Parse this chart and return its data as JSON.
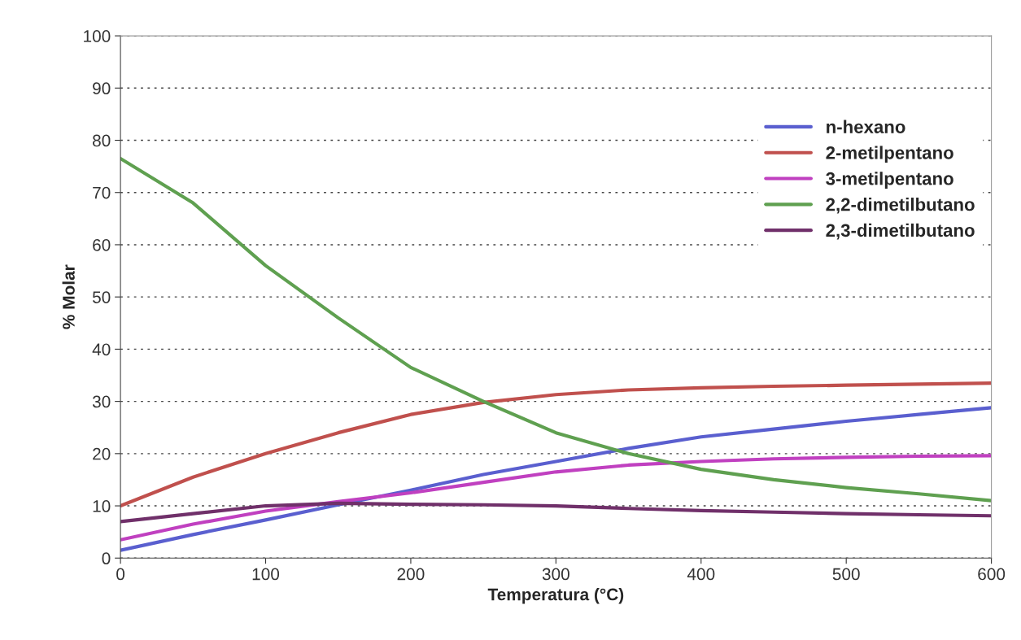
{
  "chart_data": {
    "type": "line",
    "xlabel": "Temperatura (°C)",
    "ylabel": "% Molar",
    "x": [
      0,
      50,
      100,
      150,
      200,
      250,
      300,
      350,
      400,
      450,
      500,
      550,
      600
    ],
    "series": [
      {
        "name": "n-hexano",
        "color": "#5a5fcf",
        "values": [
          1.5,
          4.5,
          7.3,
          10.2,
          13,
          16,
          18.5,
          21,
          23.2,
          24.7,
          26.2,
          27.5,
          28.8
        ]
      },
      {
        "name": "2-metilpentano",
        "color": "#c0504d",
        "values": [
          10,
          15.5,
          20,
          24,
          27.5,
          29.8,
          31.3,
          32.2,
          32.6,
          32.9,
          33.1,
          33.3,
          33.5
        ]
      },
      {
        "name": "3-metilpentano",
        "color": "#c040c0",
        "values": [
          3.5,
          6.5,
          9,
          10.8,
          12.5,
          14.5,
          16.5,
          17.8,
          18.5,
          19,
          19.3,
          19.5,
          19.6
        ]
      },
      {
        "name": "2,2-dimetilbutano",
        "color": "#5fa050",
        "values": [
          76.5,
          68,
          56,
          46,
          36.5,
          30,
          24,
          20,
          17,
          15,
          13.5,
          12.3,
          11
        ]
      },
      {
        "name": "2,3-dimetilbutano",
        "color": "#70306a",
        "values": [
          7,
          8.5,
          10,
          10.5,
          10.3,
          10.2,
          10,
          9.5,
          9.1,
          8.8,
          8.5,
          8.3,
          8.1
        ]
      }
    ],
    "xlim": [
      0,
      600
    ],
    "xticks": [
      0,
      100,
      200,
      300,
      400,
      500,
      600
    ],
    "ylim": [
      0,
      100
    ],
    "yticks": [
      0,
      10,
      20,
      30,
      40,
      50,
      60,
      70,
      80,
      90,
      100
    ],
    "grid": "y",
    "legend": "top right",
    "marker": "none",
    "line_style": "solid"
  }
}
